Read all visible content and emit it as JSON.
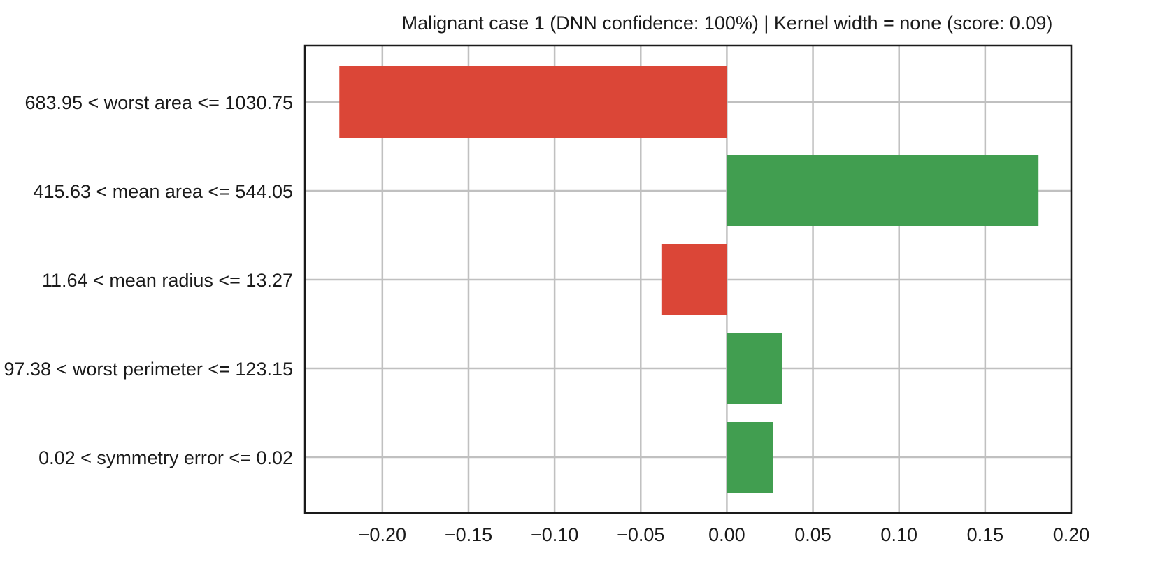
{
  "chart_data": {
    "type": "bar",
    "orientation": "horizontal",
    "title": "Malignant case 1 (DNN confidence: 100%) | Kernel width = none (score: 0.09)",
    "xlabel": "",
    "ylabel": "",
    "categories": [
      "683.95 < worst area <= 1030.75",
      "415.63 < mean area <= 544.05",
      "11.64 < mean radius <= 13.27",
      "97.38 < worst perimeter <= 123.15",
      "0.02 < symmetry error <= 0.02"
    ],
    "values": [
      -0.225,
      0.181,
      -0.038,
      0.032,
      0.027
    ],
    "xlim": [
      -0.245,
      0.2
    ],
    "xticks": [
      -0.2,
      -0.15,
      -0.1,
      -0.05,
      0.0,
      0.05,
      0.1,
      0.15,
      0.2
    ],
    "xtick_labels": [
      "−0.20",
      "−0.15",
      "−0.10",
      "−0.05",
      "0.00",
      "0.05",
      "0.10",
      "0.15",
      "0.20"
    ],
    "grid": true,
    "colors": {
      "negative": "#db4637",
      "positive": "#419e50",
      "grid": "#c0c0c0",
      "axis": "#1a1a1a"
    }
  }
}
